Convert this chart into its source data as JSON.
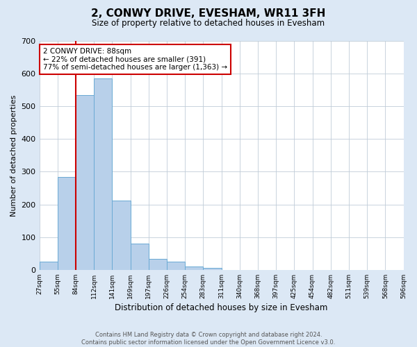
{
  "title": "2, CONWY DRIVE, EVESHAM, WR11 3FH",
  "subtitle": "Size of property relative to detached houses in Evesham",
  "xlabel": "Distribution of detached houses by size in Evesham",
  "ylabel": "Number of detached properties",
  "bar_values": [
    25,
    285,
    535,
    585,
    212,
    80,
    33,
    25,
    10,
    7,
    0,
    0,
    0,
    0,
    0,
    0,
    0,
    0,
    0,
    0
  ],
  "bin_labels": [
    "27sqm",
    "55sqm",
    "84sqm",
    "112sqm",
    "141sqm",
    "169sqm",
    "197sqm",
    "226sqm",
    "254sqm",
    "283sqm",
    "311sqm",
    "340sqm",
    "368sqm",
    "397sqm",
    "425sqm",
    "454sqm",
    "482sqm",
    "511sqm",
    "539sqm",
    "568sqm",
    "596sqm"
  ],
  "ylim": [
    0,
    700
  ],
  "yticks": [
    0,
    100,
    200,
    300,
    400,
    500,
    600,
    700
  ],
  "bar_color": "#b8d0ea",
  "bar_edge_color": "#6aaad4",
  "vline_x": 2.0,
  "vline_color": "#cc0000",
  "annotation_text": "2 CONWY DRIVE: 88sqm\n← 22% of detached houses are smaller (391)\n77% of semi-detached houses are larger (1,363) →",
  "annotation_box_color": "#ffffff",
  "annotation_box_edge": "#cc0000",
  "footer_line1": "Contains HM Land Registry data © Crown copyright and database right 2024.",
  "footer_line2": "Contains public sector information licensed under the Open Government Licence v3.0.",
  "background_color": "#dce8f5",
  "plot_bg_color": "#ffffff",
  "grid_color": "#c0ccd8"
}
